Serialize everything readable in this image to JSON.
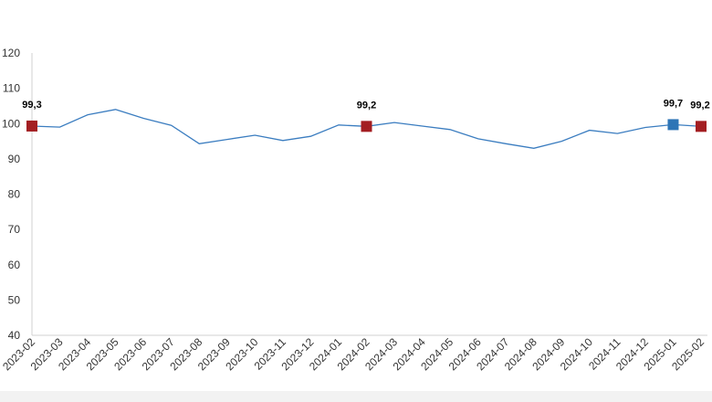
{
  "chart_data": {
    "type": "line",
    "title": "",
    "xlabel": "",
    "ylabel": "",
    "ylim": [
      40,
      120
    ],
    "yticks": [
      40,
      50,
      60,
      70,
      80,
      90,
      100,
      110,
      120
    ],
    "grid": false,
    "categories": [
      "2023-02",
      "2023-03",
      "2023-04",
      "2023-05",
      "2023-06",
      "2023-07",
      "2023-08",
      "2023-09",
      "2023-10",
      "2023-11",
      "2023-12",
      "2024-01",
      "2024-02",
      "2024-03",
      "2024-04",
      "2024-05",
      "2024-06",
      "2024-07",
      "2024-08",
      "2024-09",
      "2024-10",
      "2024-11",
      "2024-12",
      "2025-01",
      "2025-02"
    ],
    "series": [
      {
        "values": [
          99.3,
          99.0,
          102.5,
          104.0,
          101.5,
          99.5,
          94.3,
          95.5,
          96.7,
          95.2,
          96.4,
          99.6,
          99.2,
          100.3,
          99.3,
          98.3,
          95.7,
          94.3,
          93.0,
          95.0,
          98.1,
          97.2,
          98.9,
          99.7,
          99.2
        ]
      }
    ],
    "line_color": "#3b7dc0",
    "highlight_points": [
      {
        "category": "2023-02",
        "label": "99,3",
        "color": "#a31e22"
      },
      {
        "category": "2024-02",
        "label": "99,2",
        "color": "#a31e22"
      },
      {
        "category": "2025-01",
        "label": "99,7",
        "color": "#2e75b6"
      },
      {
        "category": "2025-02",
        "label": "99,2",
        "color": "#a31e22"
      }
    ]
  }
}
